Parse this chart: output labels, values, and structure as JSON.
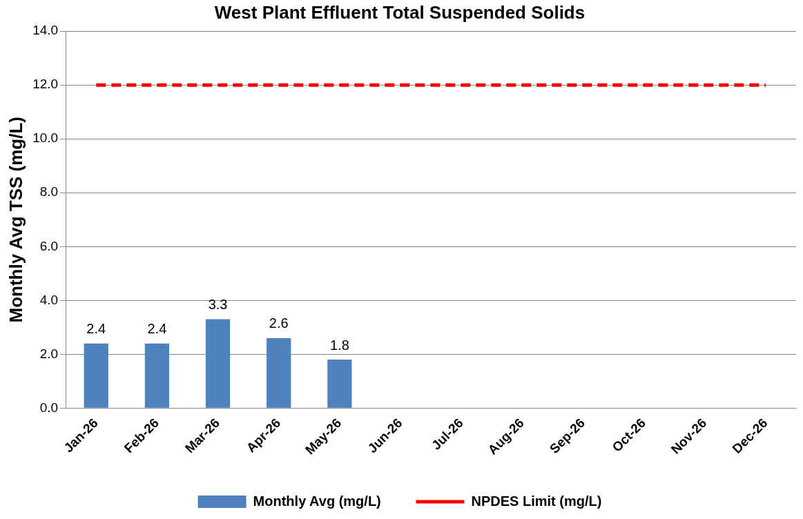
{
  "chart_data": {
    "type": "bar",
    "title": "West Plant Effluent Total Suspended Solids",
    "ylabel": "Monthly Avg TSS (mg/L)",
    "categories": [
      "Jan-26",
      "Feb-26",
      "Mar-26",
      "Apr-26",
      "May-26",
      "Jun-26",
      "Jul-26",
      "Aug-26",
      "Sep-26",
      "Oct-26",
      "Nov-26",
      "Dec-26"
    ],
    "series": [
      {
        "name": "Monthly Avg (mg/L)",
        "color": "#4f81bd",
        "values": [
          2.4,
          2.4,
          3.3,
          2.6,
          1.8,
          null,
          null,
          null,
          null,
          null,
          null,
          null
        ],
        "value_labels": [
          "2.4",
          "2.4",
          "3.3",
          "2.6",
          "1.8",
          null,
          null,
          null,
          null,
          null,
          null,
          null
        ]
      },
      {
        "name": "NPDES Limit (mg/L)",
        "type": "line",
        "color": "#ff0000",
        "line_style": "dashed",
        "marker": "none",
        "values": [
          12,
          12,
          12,
          12,
          12,
          12,
          12,
          12,
          12,
          12,
          12,
          12
        ]
      }
    ],
    "ylim": [
      0,
      14
    ],
    "yticks": [
      {
        "value": 0,
        "label": "0.0"
      },
      {
        "value": 2,
        "label": "2.0"
      },
      {
        "value": 4,
        "label": "4.0"
      },
      {
        "value": 6,
        "label": "6.0"
      },
      {
        "value": 8,
        "label": "8.0"
      },
      {
        "value": 10,
        "label": "10.0"
      },
      {
        "value": 12,
        "label": "12.0"
      },
      {
        "value": 14,
        "label": "14.0"
      }
    ],
    "grid": "y",
    "legend": "bottom"
  }
}
